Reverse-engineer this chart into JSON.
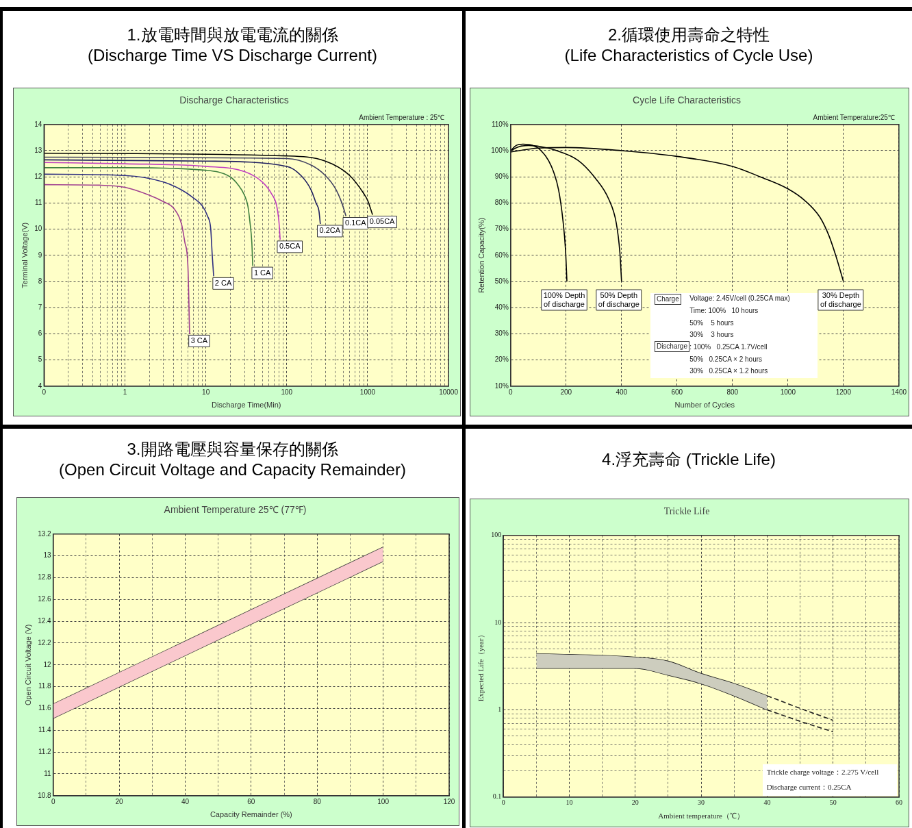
{
  "chart_data": [
    {
      "type": "line",
      "title": "1.放電時間與放電電流的關係\n(Discharge Time VS Discharge Current)",
      "subtitle": "Discharge Characteristics",
      "xlabel": "Discharge Time(Min)",
      "ylabel": "Terminal Voltage(V)",
      "annotations": [
        "Ambient Temperature : 25℃"
      ],
      "log": "x",
      "grid": true,
      "marker": "none",
      "xlim": [
        0.1,
        10000
      ],
      "ylim": [
        4,
        14
      ],
      "xticks": [
        {
          "value": 0.1,
          "label": "0"
        },
        {
          "value": 0.2,
          "label": null
        },
        {
          "value": 0.3,
          "label": null
        },
        {
          "value": 0.4,
          "label": null
        },
        {
          "value": 0.5,
          "label": null
        },
        {
          "value": 0.6,
          "label": null
        },
        {
          "value": 0.7,
          "label": null
        },
        {
          "value": 0.8,
          "label": null
        },
        {
          "value": 0.9,
          "label": null
        },
        1,
        {
          "value": 2,
          "label": null
        },
        {
          "value": 3,
          "label": null
        },
        {
          "value": 4,
          "label": null
        },
        {
          "value": 5,
          "label": null
        },
        {
          "value": 6,
          "label": null
        },
        {
          "value": 7,
          "label": null
        },
        {
          "value": 8,
          "label": null
        },
        {
          "value": 9,
          "label": null
        },
        10,
        {
          "value": 20,
          "label": null
        },
        {
          "value": 30,
          "label": null
        },
        {
          "value": 40,
          "label": null
        },
        {
          "value": 50,
          "label": null
        },
        {
          "value": 60,
          "label": null
        },
        {
          "value": 70,
          "label": null
        },
        {
          "value": 80,
          "label": null
        },
        {
          "value": 90,
          "label": null
        },
        100,
        {
          "value": 200,
          "label": null
        },
        {
          "value": 300,
          "label": null
        },
        {
          "value": 400,
          "label": null
        },
        {
          "value": 500,
          "label": null
        },
        {
          "value": 600,
          "label": null
        },
        {
          "value": 700,
          "label": null
        },
        {
          "value": 800,
          "label": null
        },
        {
          "value": 900,
          "label": null
        },
        1000,
        {
          "value": 2000,
          "label": null
        },
        {
          "value": 3000,
          "label": null
        },
        {
          "value": 4000,
          "label": null
        },
        {
          "value": 5000,
          "label": null
        },
        {
          "value": 6000,
          "label": null
        },
        {
          "value": 7000,
          "label": null
        },
        {
          "value": 8000,
          "label": null
        },
        {
          "value": 9000,
          "label": null
        },
        10000
      ],
      "yticks": [
        4,
        5,
        6,
        7,
        8,
        9,
        10,
        11,
        12,
        13,
        14
      ],
      "series": [
        {
          "name": "3 CA",
          "color": "#a04090",
          "x": [
            0.1,
            0.5,
            1,
            2,
            3,
            4,
            5,
            5.5,
            6,
            6.3
          ],
          "values": [
            11.7,
            11.68,
            11.6,
            11.3,
            11.05,
            10.8,
            10.2,
            9.5,
            8.6,
            6.0
          ]
        },
        {
          "name": "2 CA",
          "color": "#303080",
          "x": [
            0.1,
            1,
            3,
            5,
            7,
            9,
            10.5,
            11.5,
            12,
            12.5
          ],
          "values": [
            12.1,
            12.05,
            11.8,
            11.5,
            11.2,
            10.9,
            10.5,
            10.0,
            9.0,
            8.2
          ]
        },
        {
          "name": "1 CA",
          "color": "#408040",
          "x": [
            0.1,
            1,
            10,
            20,
            25,
            30,
            33,
            35,
            37,
            38
          ],
          "values": [
            12.35,
            12.35,
            12.25,
            12.0,
            11.7,
            11.3,
            10.9,
            10.3,
            9.5,
            8.6
          ]
        },
        {
          "name": "0.5CA",
          "color": "#c040c0",
          "x": [
            0.1,
            1,
            10,
            30,
            50,
            65,
            75,
            80,
            83
          ],
          "values": [
            12.55,
            12.5,
            12.4,
            12.2,
            11.8,
            11.35,
            10.9,
            10.3,
            9.6
          ]
        },
        {
          "name": "0.2CA",
          "color": "#202060",
          "x": [
            0.1,
            10,
            100,
            150,
            200,
            230,
            250,
            260
          ],
          "values": [
            12.65,
            12.6,
            12.4,
            12.05,
            11.5,
            11.0,
            10.7,
            10.2
          ]
        },
        {
          "name": "0.1CA",
          "color": "#404060",
          "x": [
            0.1,
            100,
            200,
            300,
            400,
            480,
            540
          ],
          "values": [
            12.75,
            12.7,
            12.45,
            12.05,
            11.55,
            11.0,
            10.5
          ]
        },
        {
          "name": "0.05CA",
          "color": "#000000",
          "x": [
            0.1,
            100,
            300,
            600,
            900,
            1000,
            1150
          ],
          "values": [
            12.9,
            12.8,
            12.6,
            12.05,
            11.35,
            11.1,
            10.55
          ]
        }
      ]
    },
    {
      "type": "line",
      "title": "2.循環使用壽命之特性\n(Life Characteristics of Cycle Use)",
      "subtitle": "Cycle Life Characteristics",
      "xlabel": "Number of Cycles",
      "ylabel": "Retention Capacity(%)",
      "annotations": [
        "Ambient Temperature:25℃",
        "Charge",
        "Voltage: 2.45V/cell (0.25CA max)",
        "Time: 100%   10 hours",
        "50%    5 hours",
        "30%    3 hours",
        "Discharge",
        ": 100%   0.25CA 1.7V/cell",
        "50%   0.25CA × 2 hours",
        "30%   0.25CA × 1.2 hours"
      ],
      "grid": true,
      "marker": "none",
      "xlim": [
        0,
        1400
      ],
      "ylim": [
        10,
        110
      ],
      "xticks": [
        0,
        200,
        400,
        600,
        800,
        1000,
        1200,
        1400
      ],
      "yticks": [
        {
          "value": 10,
          "label": "10%"
        },
        {
          "value": 20,
          "label": "20%"
        },
        {
          "value": 30,
          "label": "30%"
        },
        {
          "value": 40,
          "label": "40%"
        },
        {
          "value": 50,
          "label": "50%"
        },
        {
          "value": 60,
          "label": "60%"
        },
        {
          "value": 70,
          "label": "70%"
        },
        {
          "value": 80,
          "label": "80%"
        },
        {
          "value": 90,
          "label": "90%"
        },
        {
          "value": 100,
          "label": "100%"
        },
        {
          "value": 110,
          "label": "110%"
        }
      ],
      "series": [
        {
          "name": "100% Depth\nof discharge",
          "color": "#000000",
          "x": [
            0,
            20,
            45,
            80,
            105,
            147,
            173,
            189,
            198,
            203
          ],
          "values": [
            100,
            102,
            102.5,
            102,
            100.5,
            94,
            85,
            73,
            62,
            50
          ]
        },
        {
          "name": "50% Depth\nof discharge",
          "color": "#000000",
          "x": [
            0,
            30,
            65,
            110,
            157,
            243,
            306,
            354,
            381,
            394,
            400
          ],
          "values": [
            100,
            101.5,
            102,
            101.5,
            100.3,
            96.3,
            89.4,
            81.4,
            72.3,
            61,
            50
          ]
        },
        {
          "name": "30% Depth\nof discharge",
          "color": "#000000",
          "x": [
            0,
            100,
            200,
            400,
            600,
            800,
            900,
            1000,
            1060,
            1115,
            1147,
            1173,
            1200
          ],
          "values": [
            99.5,
            101,
            101.2,
            100,
            97.8,
            94,
            90,
            85.4,
            81,
            74.6,
            67.7,
            59.7,
            50
          ]
        }
      ]
    },
    {
      "type": "line",
      "title": "3.開路電壓與容量保存的關係\n(Open Circuit Voltage and Capacity Remainder)",
      "subtitle": "Ambient Temperature 25℃ (77℉)",
      "xlabel": "Capacity Remainder (%)",
      "ylabel": "Open Circuit Voltage (V)",
      "grid": true,
      "marker": "none",
      "xlim": [
        0,
        120
      ],
      "ylim": [
        10.8,
        13.2
      ],
      "xticks": [
        0,
        {
          "value": 10,
          "label": null
        },
        20,
        {
          "value": 30,
          "label": null
        },
        40,
        {
          "value": 50,
          "label": null
        },
        60,
        {
          "value": 70,
          "label": null
        },
        80,
        {
          "value": 90,
          "label": null
        },
        100,
        {
          "value": 110,
          "label": null
        },
        120
      ],
      "yticks": [
        10.8,
        11,
        11.2,
        11.4,
        11.6,
        11.8,
        12,
        12.2,
        12.4,
        12.6,
        12.8,
        13,
        13.2
      ],
      "series": [
        {
          "color": "#404040",
          "x": [
            0,
            100
          ],
          "values": [
            11.64,
            13.08
          ],
          "lower": [
            11.51,
            12.95
          ],
          "upper": [
            11.64,
            13.08
          ]
        },
        {
          "color": "#404040",
          "x": [
            0,
            100
          ],
          "values": [
            11.51,
            12.95
          ]
        }
      ]
    },
    {
      "type": "line",
      "title": "4.浮充壽命 (Trickle Life)",
      "subtitle": "Trickle Life",
      "xlabel": "Ambient temperature（℃）",
      "ylabel": "Expected Life（year）",
      "annotations": [
        "Trickle charge voltage：2.275 V/cell",
        "Discharge current：0.25CA"
      ],
      "log": "y",
      "grid": true,
      "marker": "none",
      "xlim": [
        0,
        60
      ],
      "ylim": [
        0.1,
        100
      ],
      "xticks": [
        0,
        {
          "value": 5,
          "label": null
        },
        10,
        {
          "value": 15,
          "label": null
        },
        20,
        {
          "value": 25,
          "label": null
        },
        30,
        {
          "value": 35,
          "label": null
        },
        40,
        {
          "value": 45,
          "label": null
        },
        50,
        {
          "value": 55,
          "label": null
        },
        60
      ],
      "yticks": [
        0.1,
        {
          "value": 0.2,
          "label": null
        },
        {
          "value": 0.3,
          "label": null
        },
        {
          "value": 0.4,
          "label": null
        },
        {
          "value": 0.5,
          "label": null
        },
        {
          "value": 0.6,
          "label": null
        },
        {
          "value": 0.7,
          "label": null
        },
        {
          "value": 0.8,
          "label": null
        },
        {
          "value": 0.9,
          "label": null
        },
        1,
        {
          "value": 2,
          "label": null
        },
        {
          "value": 3,
          "label": null
        },
        {
          "value": 4,
          "label": null
        },
        {
          "value": 5,
          "label": null
        },
        {
          "value": 6,
          "label": null
        },
        {
          "value": 7,
          "label": null
        },
        {
          "value": 8,
          "label": null
        },
        {
          "value": 9,
          "label": null
        },
        10,
        {
          "value": 20,
          "label": null
        },
        {
          "value": 30,
          "label": null
        },
        {
          "value": 40,
          "label": null
        },
        {
          "value": 50,
          "label": null
        },
        {
          "value": 60,
          "label": null
        },
        {
          "value": 70,
          "label": null
        },
        {
          "value": 80,
          "label": null
        },
        {
          "value": 90,
          "label": null
        },
        100
      ],
      "series": [
        {
          "color": "#202020",
          "x": [
            5,
            20,
            25,
            30,
            35,
            40
          ],
          "values": [
            4.4,
            4.0,
            3.6,
            2.6,
            2.0,
            1.45
          ],
          "lower": [
            3.0,
            3.0,
            2.5,
            2.0,
            1.45,
            1.0
          ],
          "upper": [
            4.4,
            4.0,
            3.6,
            2.6,
            2.0,
            1.45
          ]
        },
        {
          "color": "#202020",
          "x": [
            5,
            20,
            25,
            30,
            35,
            40
          ],
          "values": [
            3.0,
            3.0,
            2.5,
            2.0,
            1.45,
            1.0
          ]
        },
        {
          "color": "#202020",
          "line_style": "dashed",
          "x": [
            40,
            45,
            50
          ],
          "values": [
            1.45,
            1.04,
            0.76
          ]
        },
        {
          "color": "#202020",
          "line_style": "dashed",
          "x": [
            40,
            45,
            50
          ],
          "values": [
            1.0,
            0.74,
            0.56
          ]
        }
      ]
    }
  ]
}
